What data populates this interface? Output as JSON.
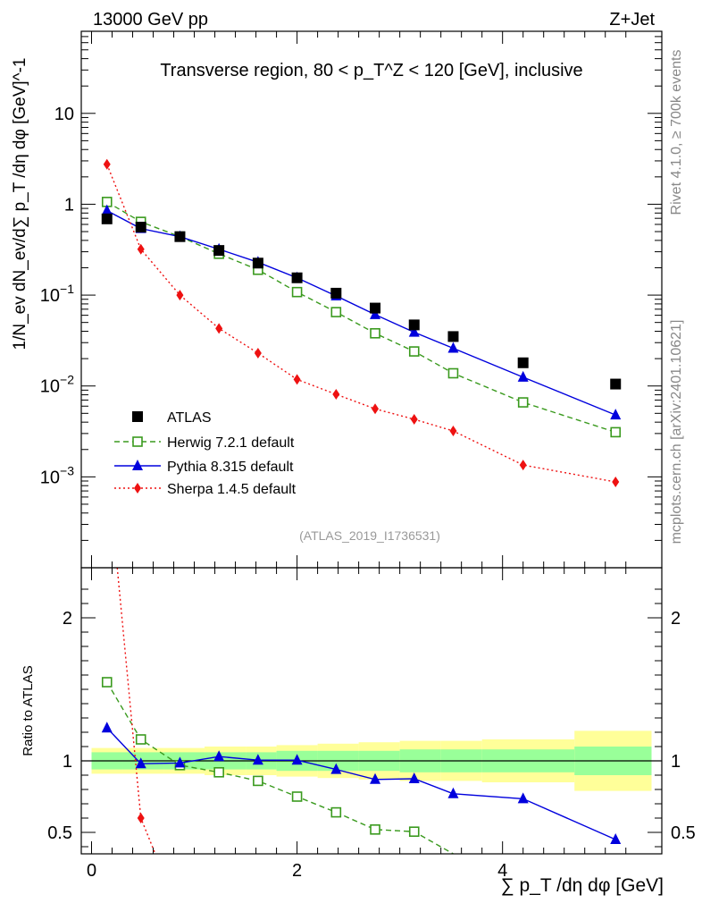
{
  "header": {
    "left": "13000 GeV pp",
    "right": "Z+Jet"
  },
  "side_labels": {
    "rivet": "Rivet 4.1.0, ≥ 700k events",
    "mcplots": "mcplots.cern.ch [arXiv:2401.10621]"
  },
  "colors": {
    "atlas": "#000000",
    "herwig": "#3a9a1e",
    "pythia": "#0000dd",
    "sherpa": "#ee1111",
    "band_inner": "#99ff99",
    "band_outer": "#ffff99"
  },
  "chart_data": [
    {
      "type": "scatter",
      "panel": "main",
      "title": "Transverse region, 80 < p_T^Z < 120 [GeV], inclusive",
      "ylabel": "1/N_ev dN_ev/d∑ p_T /dη dφ [GeV]^-1",
      "yscale": "log",
      "ylim": [
        0.0001,
        80
      ],
      "xlim": [
        -0.1,
        5.55
      ],
      "yticks": [
        "10^-3",
        "10^-2",
        "10^-1",
        "1",
        "10"
      ],
      "watermark": "(ATLAS_2019_I1736531)",
      "legend_position": "middle-left",
      "series": [
        {
          "name": "ATLAS",
          "key": "atlas",
          "style": "square",
          "x": [
            0.15,
            0.48,
            0.86,
            1.24,
            1.62,
            2.0,
            2.38,
            2.76,
            3.14,
            3.52,
            4.2,
            5.1
          ],
          "y": [
            0.69,
            0.56,
            0.44,
            0.31,
            0.225,
            0.155,
            0.105,
            0.072,
            0.047,
            0.035,
            0.018,
            0.0105
          ]
        },
        {
          "name": "Herwig 7.2.1 default",
          "key": "herwig",
          "style": "open-square-dashed",
          "x": [
            0.15,
            0.48,
            0.86,
            1.24,
            1.62,
            2.0,
            2.38,
            2.76,
            3.14,
            3.52,
            4.2,
            5.1
          ],
          "y": [
            1.06,
            0.64,
            0.44,
            0.285,
            0.19,
            0.108,
            0.065,
            0.038,
            0.024,
            0.0138,
            0.0066,
            0.0031
          ]
        },
        {
          "name": "Pythia 8.315 default",
          "key": "pythia",
          "style": "triangle-solid",
          "x": [
            0.15,
            0.48,
            0.86,
            1.24,
            1.62,
            2.0,
            2.38,
            2.76,
            3.14,
            3.52,
            4.2,
            5.1
          ],
          "y": [
            0.85,
            0.54,
            0.44,
            0.32,
            0.23,
            0.155,
            0.098,
            0.061,
            0.039,
            0.026,
            0.0125,
            0.0048
          ]
        },
        {
          "name": "Sherpa 1.4.5 default",
          "key": "sherpa",
          "style": "diamond-dotted",
          "x": [
            0.15,
            0.48,
            0.86,
            1.24,
            1.62,
            2.0,
            2.38,
            2.76,
            3.14,
            3.52,
            4.2,
            5.1
          ],
          "y": [
            2.75,
            0.32,
            0.1,
            0.043,
            0.023,
            0.0118,
            0.0081,
            0.0056,
            0.0043,
            0.0032,
            0.00135,
            0.00088
          ]
        }
      ]
    },
    {
      "type": "line",
      "panel": "ratio",
      "ylabel": "Ratio to ATLAS",
      "xlabel": "∑ p_T /dη dφ [GeV]",
      "ylim": [
        0.35,
        2.35
      ],
      "xlim": [
        -0.1,
        5.55
      ],
      "xticks": [
        0,
        2,
        4
      ],
      "yticks": [
        0.5,
        1,
        2
      ],
      "reference_line": 1,
      "bands": {
        "edges": [
          0,
          0.3,
          0.7,
          1.1,
          1.5,
          1.8,
          2.2,
          2.6,
          3.0,
          3.4,
          3.8,
          4.7,
          5.45
        ],
        "inner": [
          0.06,
          0.06,
          0.06,
          0.06,
          0.06,
          0.07,
          0.07,
          0.07,
          0.08,
          0.08,
          0.08,
          0.1
        ],
        "outer": [
          0.09,
          0.09,
          0.09,
          0.1,
          0.1,
          0.11,
          0.12,
          0.13,
          0.14,
          0.14,
          0.15,
          0.21
        ]
      },
      "series": [
        {
          "name": "Herwig 7.2.1 default",
          "key": "herwig",
          "x": [
            0.15,
            0.48,
            0.86,
            1.24,
            1.62,
            2.0,
            2.38,
            2.76,
            3.14,
            3.52
          ],
          "y": [
            1.55,
            1.15,
            0.97,
            0.92,
            0.86,
            0.75,
            0.64,
            0.52,
            0.505,
            0.35
          ]
        },
        {
          "name": "Pythia 8.315 default",
          "key": "pythia",
          "x": [
            0.15,
            0.48,
            0.86,
            1.24,
            1.62,
            2.0,
            2.38,
            2.76,
            3.14,
            3.52,
            4.2,
            5.1
          ],
          "y": [
            1.23,
            0.98,
            0.985,
            1.03,
            1.005,
            1.005,
            0.94,
            0.87,
            0.875,
            0.77,
            0.735,
            0.45
          ]
        },
        {
          "name": "Sherpa 1.4.5 default",
          "key": "sherpa",
          "x": [
            0.25,
            0.48,
            0.62
          ],
          "y": [
            2.35,
            0.6,
            0.35
          ]
        }
      ]
    }
  ]
}
